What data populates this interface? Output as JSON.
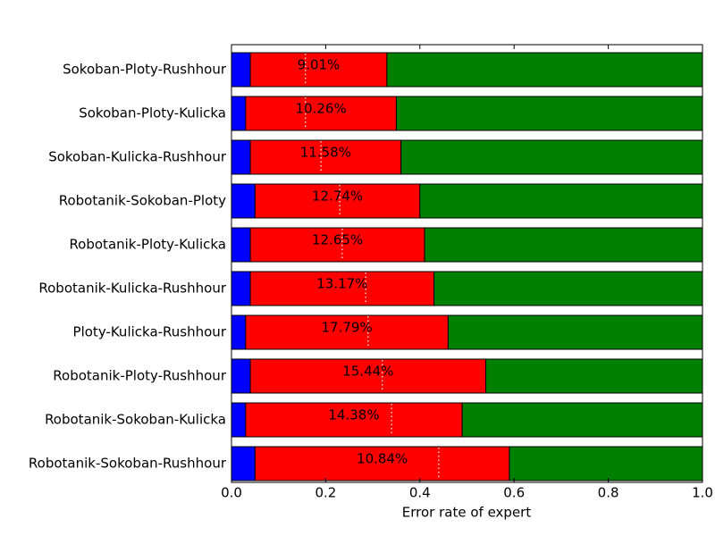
{
  "chart_data": {
    "type": "stacked-barh",
    "categories": [
      "Sokoban-Ploty-Rushhour",
      "Sokoban-Ploty-Kulicka",
      "Sokoban-Kulicka-Rushhour",
      "Robotanik-Sokoban-Ploty",
      "Robotanik-Ploty-Kulicka",
      "Robotanik-Kulicka-Rushhour",
      "Ploty-Kulicka-Rushhour",
      "Robotanik-Ploty-Rushhour",
      "Robotanik-Sokoban-Kulicka",
      "Robotanik-Sokoban-Rushhour"
    ],
    "series": [
      {
        "color": "#0000ff",
        "values": [
          0.04,
          0.03,
          0.04,
          0.05,
          0.04,
          0.04,
          0.03,
          0.04,
          0.03,
          0.05
        ]
      },
      {
        "color": "#ff0000",
        "values": [
          0.29,
          0.32,
          0.32,
          0.35,
          0.37,
          0.39,
          0.43,
          0.5,
          0.46,
          0.54
        ]
      },
      {
        "color": "#008000",
        "values": [
          0.67,
          0.65,
          0.64,
          0.6,
          0.59,
          0.57,
          0.54,
          0.46,
          0.51,
          0.41
        ]
      }
    ],
    "labels": [
      "9.01%",
      "10.26%",
      "11.58%",
      "12.74%",
      "12.65%",
      "13.17%",
      "17.79%",
      "15.44%",
      "14.38%",
      "10.84%"
    ],
    "markers": [
      0.157,
      0.157,
      0.19,
      0.23,
      0.235,
      0.285,
      0.29,
      0.32,
      0.34,
      0.44
    ],
    "marker_color": "#ffffff",
    "xlabel": "Error rate of expert",
    "xlim": [
      0,
      1
    ],
    "xticks": [
      {
        "value": 0,
        "label": "0.0"
      },
      {
        "value": 0.2,
        "label": "0.2"
      },
      {
        "value": 0.4,
        "label": "0.4"
      },
      {
        "value": 0.6,
        "label": "0.6"
      },
      {
        "value": 0.8,
        "label": "0.8"
      },
      {
        "value": 1,
        "label": "1.0"
      }
    ]
  }
}
